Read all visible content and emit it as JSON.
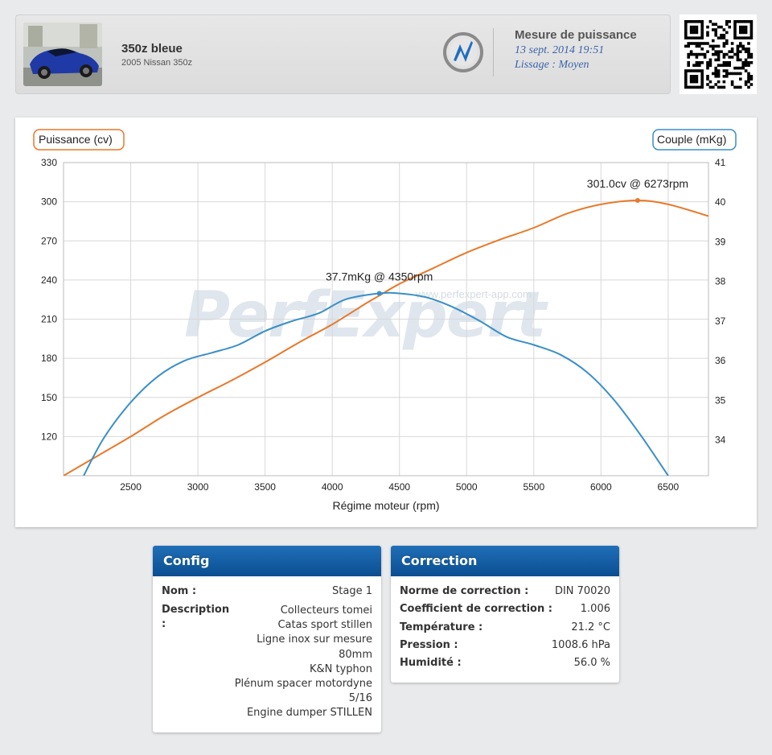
{
  "header": {
    "car_name": "350z bleue",
    "car_model": "2005 Nissan 350z",
    "measure_title": "Mesure de puissance",
    "measure_date": "13 sept. 2014 19:51",
    "smoothing": "Lissage : Moyen"
  },
  "watermark": {
    "brand": "PerfExpert",
    "url": "www.perfexpert-app.com"
  },
  "colors": {
    "power": "#e8792a",
    "torque": "#3a8fc6",
    "card_header": "#1565b0"
  },
  "chart_data": {
    "type": "line",
    "xlabel": "Régime moteur (rpm)",
    "xlim": [
      2000,
      6800
    ],
    "x_ticks": [
      2500,
      3000,
      3500,
      4000,
      4500,
      5000,
      5500,
      6000,
      6500
    ],
    "grid": true,
    "left_axis": {
      "label": "Puissance (cv)",
      "range": [
        90,
        330
      ],
      "ticks": [
        120,
        150,
        180,
        210,
        240,
        270,
        300,
        330
      ]
    },
    "right_axis": {
      "label": "Couple (mKg)",
      "range": [
        33.1,
        41
      ],
      "ticks": [
        34,
        35,
        36,
        37,
        38,
        39,
        40,
        41
      ]
    },
    "series": [
      {
        "name": "Puissance (cv)",
        "axis": "left",
        "x": [
          2000,
          2250,
          2500,
          2750,
          3000,
          3250,
          3500,
          3750,
          4000,
          4250,
          4350,
          4500,
          4750,
          5000,
          5250,
          5500,
          5750,
          6000,
          6273,
          6500,
          6800
        ],
        "values": [
          90,
          105,
          120,
          136,
          150,
          163,
          177,
          192,
          206,
          222,
          228,
          237,
          249,
          261,
          271,
          280,
          291,
          298,
          301,
          298,
          289
        ],
        "peak_label": "301.0cv @ 6273rpm",
        "peak_index": 18
      },
      {
        "name": "Couple (mKg)",
        "axis": "right",
        "x": [
          2150,
          2300,
          2500,
          2700,
          2900,
          3100,
          3300,
          3500,
          3700,
          3900,
          4100,
          4350,
          4500,
          4700,
          4900,
          5100,
          5300,
          5500,
          5700,
          5900,
          6100,
          6300,
          6500
        ],
        "values": [
          33.1,
          34.05,
          34.95,
          35.6,
          36.0,
          36.2,
          36.4,
          36.75,
          37.0,
          37.2,
          37.55,
          37.7,
          37.7,
          37.6,
          37.35,
          37.0,
          36.6,
          36.4,
          36.15,
          35.7,
          35.0,
          34.1,
          33.1
        ],
        "peak_label": "37.7mKg @ 4350rpm",
        "peak_index": 11
      }
    ]
  },
  "config": {
    "title": "Config",
    "name_label": "Nom :",
    "name_value": "Stage 1",
    "description_label": "Description",
    "description_colon": ":",
    "description_lines": [
      "Collecteurs tomei",
      "Catas sport stillen",
      "Ligne inox sur mesure",
      "80mm",
      "K&N typhon",
      "Plénum spacer motordyne",
      "5/16",
      "Engine dumper STILLEN"
    ]
  },
  "correction": {
    "title": "Correction",
    "rows": [
      {
        "label": "Norme de correction :",
        "value": "DIN 70020"
      },
      {
        "label": "Coefficient de correction :",
        "value": "1.006"
      },
      {
        "label": "Température :",
        "value": "21.2 °C"
      },
      {
        "label": "Pression :",
        "value": "1008.6 hPa"
      },
      {
        "label": "Humidité :",
        "value": "56.0 %"
      }
    ]
  }
}
